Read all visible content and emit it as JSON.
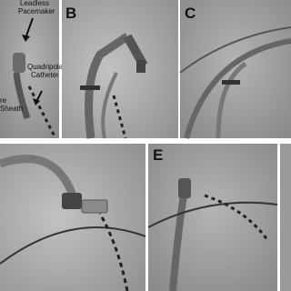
{
  "panels": [
    {
      "label": null,
      "annotations": [
        {
          "lines": [
            "Leadless",
            "Pacemaker"
          ]
        },
        {
          "lines": [
            "Quadripolar",
            "Catheter"
          ]
        },
        {
          "lines": [
            "re",
            "Sheath"
          ]
        }
      ]
    },
    {
      "label": "B"
    },
    {
      "label": "C"
    },
    {
      "label": null
    },
    {
      "label": "E"
    },
    {
      "label": null
    }
  ]
}
